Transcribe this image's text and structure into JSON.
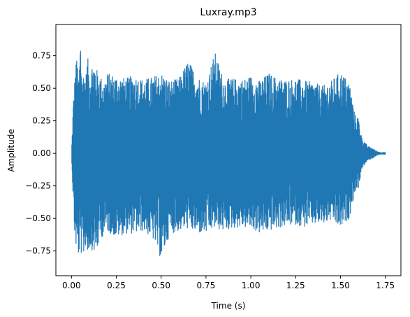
{
  "chart_data": {
    "type": "line",
    "title": "Luxray.mp3",
    "xlabel": "Time (s)",
    "ylabel": "Amplitude",
    "xlim": [
      -0.087,
      1.837
    ],
    "ylim": [
      -0.94,
      0.99
    ],
    "xticks": [
      {
        "value": 0.0,
        "label": "0.00"
      },
      {
        "value": 0.25,
        "label": "0.25"
      },
      {
        "value": 0.5,
        "label": "0.50"
      },
      {
        "value": 0.75,
        "label": "0.75"
      },
      {
        "value": 1.0,
        "label": "1.00"
      },
      {
        "value": 1.25,
        "label": "1.25"
      },
      {
        "value": 1.5,
        "label": "1.50"
      },
      {
        "value": 1.75,
        "label": "1.75"
      }
    ],
    "yticks": [
      {
        "value": 0.75,
        "label": "0.75"
      },
      {
        "value": 0.5,
        "label": "0.50"
      },
      {
        "value": 0.25,
        "label": "0.25"
      },
      {
        "value": 0.0,
        "label": "0.00"
      },
      {
        "value": -0.25,
        "label": "−0.25"
      },
      {
        "value": -0.5,
        "label": "−0.50"
      },
      {
        "value": -0.75,
        "label": "−0.75"
      }
    ],
    "grid": false,
    "series": [
      {
        "color": "#1f77b4",
        "description_points": "Envelope of waveform: max and min amplitude per time bin",
        "x": [
          0.0,
          0.01,
          0.02,
          0.03,
          0.04,
          0.05,
          0.06,
          0.07,
          0.08,
          0.09,
          0.1,
          0.12,
          0.14,
          0.16,
          0.18,
          0.2,
          0.25,
          0.3,
          0.35,
          0.4,
          0.45,
          0.5,
          0.55,
          0.6,
          0.65,
          0.7,
          0.75,
          0.8,
          0.85,
          0.9,
          0.95,
          1.0,
          1.05,
          1.1,
          1.15,
          1.2,
          1.25,
          1.3,
          1.35,
          1.4,
          1.45,
          1.5,
          1.55,
          1.58,
          1.6,
          1.62,
          1.65,
          1.68,
          1.7,
          1.72,
          1.75
        ],
        "y_max": [
          0.0,
          0.4,
          0.62,
          0.77,
          0.55,
          0.9,
          0.6,
          0.63,
          0.6,
          0.75,
          0.62,
          0.72,
          0.65,
          0.6,
          0.55,
          0.62,
          0.6,
          0.58,
          0.6,
          0.57,
          0.59,
          0.62,
          0.56,
          0.58,
          0.72,
          0.6,
          0.55,
          0.78,
          0.57,
          0.58,
          0.57,
          0.6,
          0.56,
          0.62,
          0.58,
          0.57,
          0.58,
          0.56,
          0.55,
          0.52,
          0.56,
          0.63,
          0.55,
          0.3,
          0.28,
          0.12,
          0.06,
          0.04,
          0.02,
          0.01,
          0.01
        ],
        "y_min": [
          0.0,
          -0.4,
          -0.7,
          -0.75,
          -0.8,
          -0.72,
          -0.85,
          -0.78,
          -0.7,
          -0.8,
          -0.73,
          -0.75,
          -0.78,
          -0.65,
          -0.64,
          -0.6,
          -0.65,
          -0.62,
          -0.62,
          -0.6,
          -0.65,
          -0.82,
          -0.62,
          -0.6,
          -0.58,
          -0.62,
          -0.62,
          -0.58,
          -0.6,
          -0.58,
          -0.57,
          -0.58,
          -0.62,
          -0.6,
          -0.58,
          -0.56,
          -0.55,
          -0.57,
          -0.55,
          -0.55,
          -0.52,
          -0.58,
          -0.5,
          -0.3,
          -0.27,
          -0.12,
          -0.06,
          -0.04,
          -0.02,
          -0.01,
          -0.01
        ]
      }
    ]
  }
}
